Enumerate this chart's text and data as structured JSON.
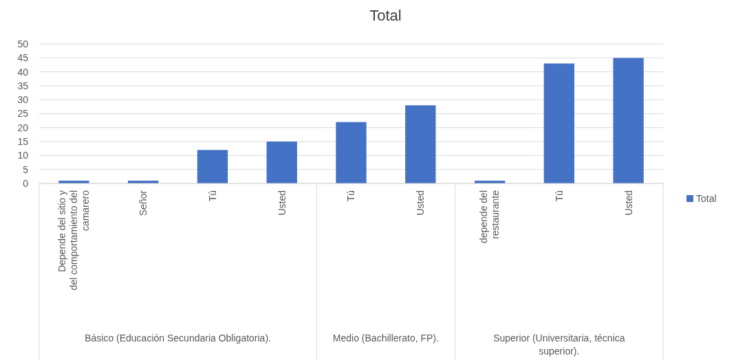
{
  "chart_data": {
    "type": "bar",
    "title": "Total",
    "categories": [
      "Depende del sitio y del comportamiento del camarero",
      "Señor",
      "Tú",
      "Usted",
      "Tú",
      "Usted",
      "depende del restaurante",
      "Tú",
      "Usted"
    ],
    "series": [
      {
        "name": "Total",
        "color": "#4472c4",
        "values": [
          1,
          1,
          12,
          15,
          22,
          28,
          1,
          43,
          45
        ]
      }
    ],
    "ylim": [
      0,
      50
    ],
    "yticks": [
      0,
      5,
      10,
      15,
      20,
      25,
      30,
      35,
      40,
      45,
      50
    ],
    "grid": "y",
    "legend": "right",
    "annotations": [
      "Básico (Educación Secundaria Obligatoria).",
      "Medio (Bachillerato, FP).",
      "Superior (Universitaria, técnica superior)."
    ]
  }
}
